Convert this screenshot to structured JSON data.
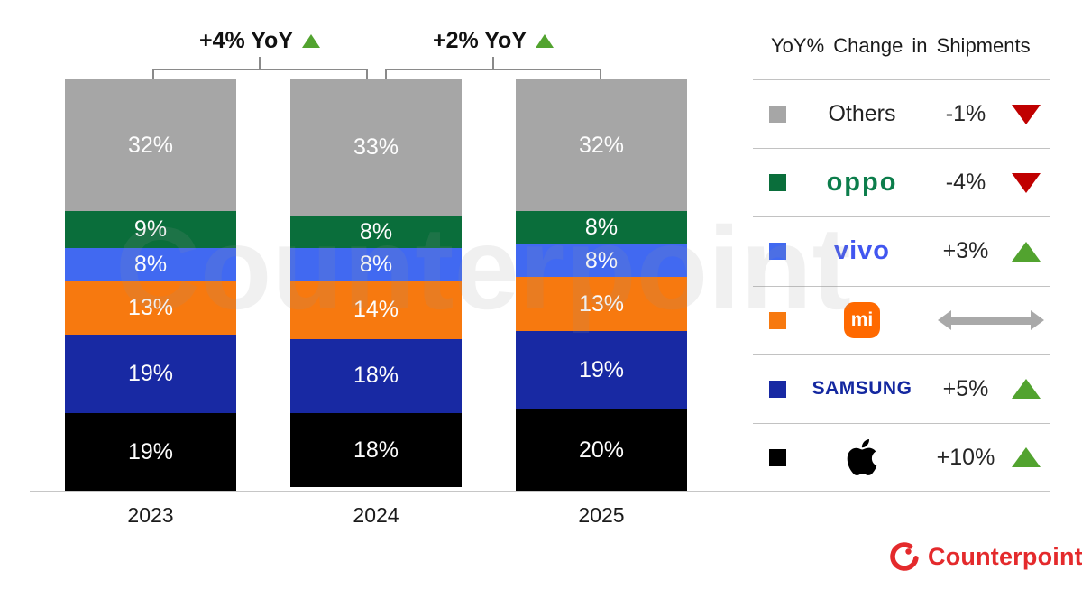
{
  "watermark": "Counterpoint",
  "chart_data": {
    "type": "bar",
    "stacked": true,
    "unit": "%",
    "ylim": [
      0,
      100
    ],
    "grid": false,
    "legend_position": "right",
    "categories": [
      "2023",
      "2024",
      "2025"
    ],
    "series": [
      {
        "name": "Others",
        "color": "#a6a6a6",
        "values": [
          32,
          33,
          32
        ],
        "labels": [
          "32%",
          "33%",
          "32%"
        ]
      },
      {
        "name": "OPPO",
        "color": "#0a6e3b",
        "values": [
          9,
          8,
          8
        ],
        "labels": [
          "9%",
          "8%",
          "8%"
        ]
      },
      {
        "name": "vivo",
        "color": "#4169f1",
        "values": [
          8,
          8,
          8
        ],
        "labels": [
          "8%",
          "8%",
          "8%"
        ]
      },
      {
        "name": "Xiaomi",
        "color": "#f7790f",
        "values": [
          13,
          14,
          13
        ],
        "labels": [
          "13%",
          "14%",
          "13%"
        ]
      },
      {
        "name": "Samsung",
        "color": "#1829a3",
        "values": [
          19,
          18,
          19
        ],
        "labels": [
          "19%",
          "18%",
          "19%"
        ]
      },
      {
        "name": "Apple",
        "color": "#000000",
        "values": [
          19,
          18,
          20
        ],
        "labels": [
          "19%",
          "18%",
          "20%"
        ]
      }
    ],
    "growth_annotations": [
      {
        "label": "+4% YoY",
        "trend": "up",
        "between": [
          "2023",
          "2024"
        ]
      },
      {
        "label": "+2% YoY",
        "trend": "up",
        "between": [
          "2024",
          "2025"
        ]
      }
    ]
  },
  "legend": {
    "title": "YoY% Change in Shipments",
    "rows": [
      {
        "brand": "Others",
        "logo": "text",
        "change": "-1%",
        "trend": "down"
      },
      {
        "brand": "OPPO",
        "logo": "oppo",
        "change": "-4%",
        "trend": "down"
      },
      {
        "brand": "vivo",
        "logo": "vivo",
        "change": "+3%",
        "trend": "up"
      },
      {
        "brand": "Xiaomi",
        "logo": "mi",
        "logo_text": "mi",
        "change": "",
        "trend": "flat"
      },
      {
        "brand": "SAMSUNG",
        "logo": "samsung",
        "change": "+5%",
        "trend": "up"
      },
      {
        "brand": "Apple",
        "logo": "apple",
        "change": "+10%",
        "trend": "up"
      }
    ]
  },
  "footer": {
    "brand": "Counterpoint"
  },
  "colors": {
    "up_triangle": "#52a32f",
    "down_triangle": "#c00000",
    "flat_arrow": "#a9a9a9",
    "divider": "#c2c2c2",
    "bracket": "#8a8a8a",
    "axis_line": "#c6c6c6",
    "oppo_logo": "#0c7d4b",
    "vivo_logo": "#4156f0",
    "samsung_logo": "#1428a0",
    "mi_badge": "#ff6900",
    "counterpoint_red": "#e42a2c"
  }
}
